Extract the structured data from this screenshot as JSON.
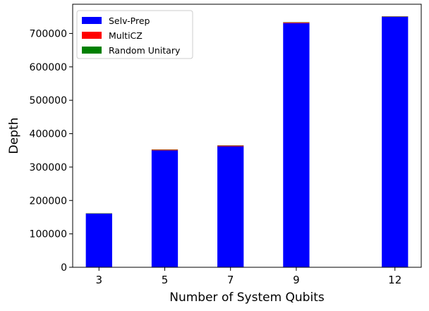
{
  "chart_data": {
    "type": "bar",
    "stacked": true,
    "x": [
      3,
      5,
      7,
      9,
      12
    ],
    "x_ticks": [
      "3",
      "5",
      "7",
      "9",
      "12"
    ],
    "series": [
      {
        "name": "Selv-Prep",
        "color": "#0000ff",
        "values": [
          161000,
          350000,
          362000,
          731000,
          750000
        ]
      },
      {
        "name": "MultiCZ",
        "color": "#ff0000",
        "values": [
          500,
          2500,
          2500,
          2500,
          1000
        ]
      },
      {
        "name": "Random Unitary",
        "color": "#008000",
        "values": [
          100,
          200,
          200,
          300,
          300
        ]
      }
    ],
    "xlabel": "Number of System Qubits",
    "ylabel": "Depth",
    "ylim": [
      0,
      787500
    ],
    "xlim": [
      2.2,
      12.8
    ],
    "y_ticks": [
      0,
      100000,
      200000,
      300000,
      400000,
      500000,
      600000,
      700000
    ],
    "bar_width": 0.8,
    "grid": false,
    "legend_position": "top-left"
  }
}
